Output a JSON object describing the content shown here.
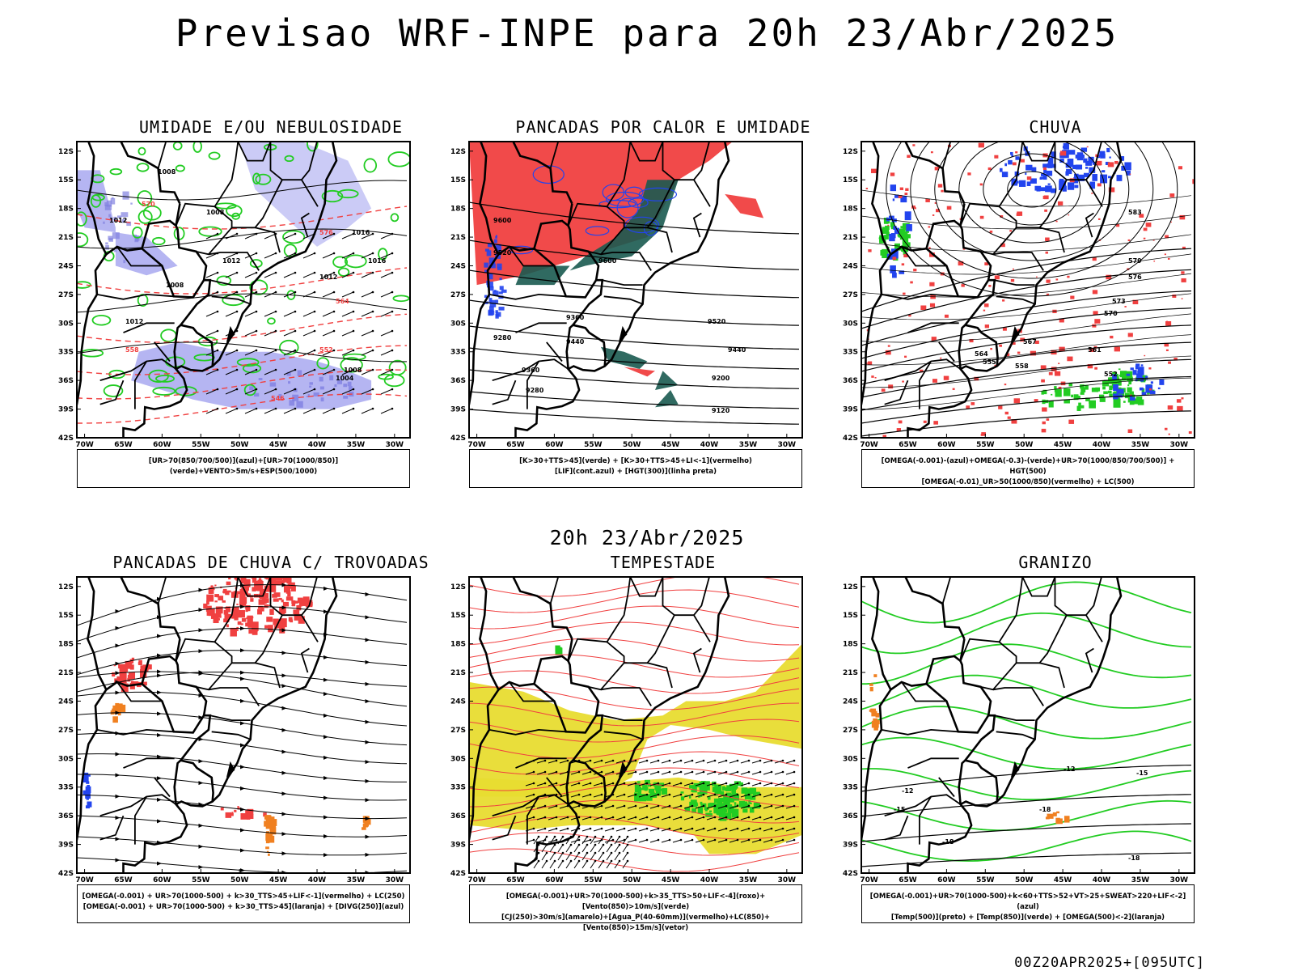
{
  "header": {
    "title": "Previsao WRF-INPE  para 20h 23/Abr/2025"
  },
  "center_time": "20h 23/Abr/2025",
  "footer": {
    "run_label": "00Z20APR2025+[095UTC]"
  },
  "axes": {
    "lat_labels": [
      "12S",
      "15S",
      "18S",
      "21S",
      "24S",
      "27S",
      "30S",
      "33S",
      "36S",
      "39S",
      "42S"
    ],
    "lon_labels": [
      "70W",
      "65W",
      "60W",
      "55W",
      "50W",
      "45W",
      "40W",
      "35W",
      "30W"
    ]
  },
  "colors": {
    "red": "#f04040",
    "green": "#22cc22",
    "blue": "#2244ee",
    "lavender": "#a8a8f0",
    "yellow": "#e8dc30",
    "orange": "#f08020",
    "darkteal": "#1a5a50"
  },
  "panels": [
    {
      "id": "umidade",
      "title": "UMIDADE E/OU NEBULOSIDADE",
      "legend": [
        "[UR>70(850/700/500)](azul)+[UR>70(1000/850)](verde)+VENTO>5m/s+ESP(500/1000)"
      ],
      "contour_labels": [
        "1008",
        "1008",
        "1012",
        "1012",
        "1016",
        "1008",
        "1012",
        "1016",
        "1012",
        "1004",
        "1008",
        "576",
        "570",
        "564",
        "558",
        "552",
        "546"
      ]
    },
    {
      "id": "pancadas_calor",
      "title": "PANCADAS POR CALOR E UMIDADE",
      "legend": [
        "[K>30+TTS>45](verde) + [K>30+TTS>45+LI<-1](vermelho)",
        "[LIF](cont.azul) + [HGT(300)](linha preta)"
      ],
      "contour_labels": [
        "9600",
        "9520",
        "9600",
        "9440",
        "9520",
        "9360",
        "9280",
        "9440",
        "9360",
        "9280",
        "9200",
        "9120"
      ]
    },
    {
      "id": "chuva",
      "title": "CHUVA",
      "legend": [
        "[OMEGA(-0.001)-(azul)+OMEGA(-0.3)-(verde)+UR>70(1000/850/700/500)] + HGT(500)",
        "[OMEGA(-0.01)_UR>50(1000/850)(vermelho) + LC(500)"
      ],
      "contour_labels": [
        "583",
        "579",
        "576",
        "573",
        "570",
        "567",
        "564",
        "561",
        "558",
        "555",
        "552"
      ]
    },
    {
      "id": "pancadas_trovoadas",
      "title": "PANCADAS DE CHUVA C/ TROVOADAS",
      "legend": [
        "[OMEGA(-0.001) + UR>70(1000-500) + k>30_TTS>45+LIF<-1](vermelho) + LC(250)",
        "[OMEGA(-0.001) + UR>70(1000-500) + k>30_TTS>45](laranja) + [DIVG(250)](azul)"
      ],
      "contour_labels": []
    },
    {
      "id": "tempestade",
      "title": "TEMPESTADE",
      "legend": [
        "[OMEGA(-0.001)+UR>70(1000-500)+k>35_TTS>50+LIF<-4](roxo)+[Vento(850)>10m/s](verde)",
        "[CJ(250)>30m/s](amarelo)+[Agua_P(40-60mm)](vermelho)+LC(850)+[Vento(850)>15m/s](vetor)"
      ],
      "contour_labels": []
    },
    {
      "id": "granizo",
      "title": "GRANIZO",
      "legend": [
        "[OMEGA(-0.001)+UR>70(1000-500)+k<60+TTS>52+VT>25+SWEAT>220+LIF<-2](azul)",
        "[Temp(500)](preto) + [Temp(850)](verde) + [OMEGA(500)<-2](laranja)"
      ],
      "contour_labels": [
        "-12",
        "-12",
        "-15",
        "-15",
        "-18",
        "-18",
        "-18"
      ]
    }
  ]
}
